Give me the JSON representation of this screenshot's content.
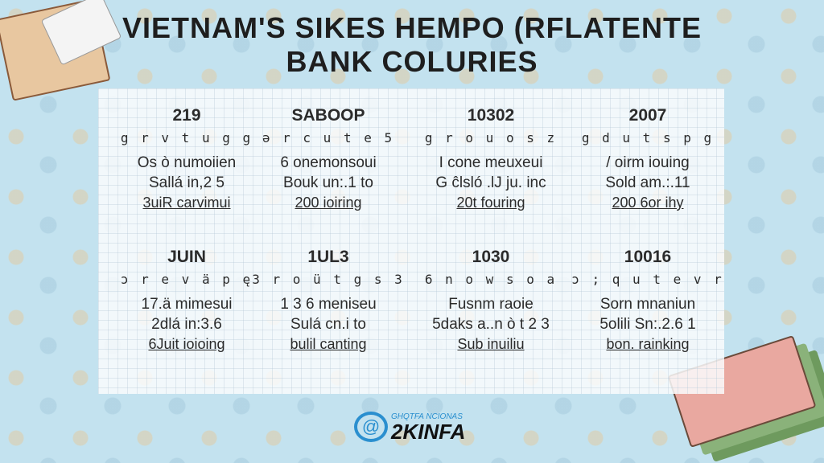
{
  "title": {
    "line1": "VIETNAM'S SIKES HEMPO (RFLATENTE",
    "line2": "BANK COLURIES"
  },
  "cards": [
    {
      "heading": "219",
      "squiggle": "g r v t u g g",
      "line1": "Os ò numoiien",
      "line2": "Sallá in,2 5",
      "link": "3uiR carvimui"
    },
    {
      "heading": "SABOOP",
      "squiggle": "ə r c u t e 5",
      "line1": "6 onemonsoui",
      "line2": "Bouk un:.1 to",
      "link": "200 ioiring"
    },
    {
      "heading": "10302",
      "squiggle": "g r o u o s z",
      "line1": "I cone meuxeui",
      "line2": "G ĉlsló .lJ ju. inc",
      "link": "20t fouring"
    },
    {
      "heading": "2007",
      "squiggle": "g d u t s p g",
      "line1": "/ oirm iouing",
      "line2": "Sold am.:.11",
      "link": "200 6or ihy"
    },
    {
      "heading": "JUIN",
      "squiggle": "ɔ r e v ä p ę",
      "line1": "17.ä mimesui",
      "line2": "2dlá in:3.6",
      "link": "6Juit ioioing"
    },
    {
      "heading": "1UL3",
      "squiggle": "3 r o ü t g s 3",
      "line1": "1 3 6 meniseu",
      "line2": "Sulá cn.i to",
      "link": "bulil canting"
    },
    {
      "heading": "1030",
      "squiggle": "6 n o w s o a",
      "line1": "Fusnm raoie",
      "line2": "5daks a..n ò t 2 3",
      "link": "Sub inuiliu"
    },
    {
      "heading": "10016",
      "squiggle": "ɔ ; q u t e v r",
      "line1": "Sorn mnaniun",
      "line2": "5olili Sn:.2.6 1",
      "link": "bon. rainking"
    }
  ],
  "logo": {
    "subtitle": "GHQTFA NCIONAS",
    "name": "2KINFA",
    "icon": "swirl-at-icon"
  },
  "colors": {
    "background": "#c3e2ef",
    "logo_blue": "#2a8fcf"
  }
}
